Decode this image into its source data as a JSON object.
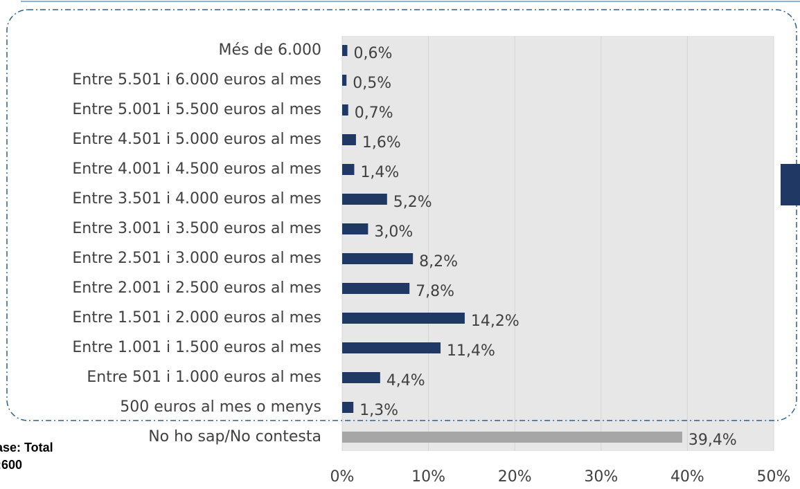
{
  "chart_data": {
    "type": "bar",
    "orientation": "horizontal",
    "categories": [
      "Més de 6.000",
      "Entre 5.501 i 6.000 euros al mes",
      "Entre 5.001 i 5.500 euros al mes",
      "Entre 4.501 i 5.000 euros al mes",
      "Entre 4.001 i 4.500 euros al mes",
      "Entre 3.501 i 4.000 euros al mes",
      "Entre 3.001 i 3.500 euros al mes",
      "Entre 2.501 i 3.000 euros al mes",
      "Entre 2.001 i 2.500 euros al mes",
      "Entre 1.501 i 2.000 euros al mes",
      "Entre 1.001 i 1.500 euros al mes",
      "Entre 501 i 1.000 euros al mes",
      "500 euros al mes o menys",
      "No ho sap/No contesta"
    ],
    "values": [
      0.6,
      0.5,
      0.7,
      1.6,
      1.4,
      5.2,
      3.0,
      8.2,
      7.8,
      14.2,
      11.4,
      4.4,
      1.3,
      39.4
    ],
    "value_labels": [
      "0,6%",
      "0,5%",
      "0,7%",
      "1,6%",
      "1,4%",
      "5,2%",
      "3,0%",
      "8,2%",
      "7,8%",
      "14,2%",
      "11,4%",
      "4,4%",
      "1,3%",
      "39,4%"
    ],
    "colors": [
      "#1f3864",
      "#1f3864",
      "#1f3864",
      "#1f3864",
      "#1f3864",
      "#1f3864",
      "#1f3864",
      "#1f3864",
      "#1f3864",
      "#1f3864",
      "#1f3864",
      "#1f3864",
      "#1f3864",
      "#a6a6a6"
    ],
    "xlim": [
      0,
      50
    ],
    "xticks": [
      {
        "value": 0,
        "label": "0%"
      },
      {
        "value": 10,
        "label": "10%"
      },
      {
        "value": 20,
        "label": "20%"
      },
      {
        "value": 30,
        "label": "30%"
      },
      {
        "value": 40,
        "label": "40%"
      },
      {
        "value": 50,
        "label": "50%"
      }
    ],
    "grid": true,
    "notes": [
      "ase: Total",
      ":600"
    ]
  }
}
